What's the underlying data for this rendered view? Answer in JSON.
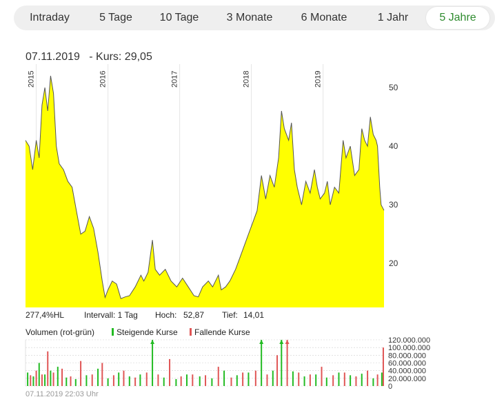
{
  "tabs": [
    {
      "label": "Intraday",
      "active": false
    },
    {
      "label": "5 Tage",
      "active": false
    },
    {
      "label": "10 Tage",
      "active": false
    },
    {
      "label": "3 Monate",
      "active": false
    },
    {
      "label": "6 Monate",
      "active": false
    },
    {
      "label": "1 Jahr",
      "active": false
    },
    {
      "label": "5 Jahre",
      "active": true
    }
  ],
  "header": {
    "date": "07.11.2019",
    "price_label": "Kurs: 29,05"
  },
  "stats": {
    "change": "277,4%HL",
    "interval": "Intervall: 1 Tag",
    "high_label": "Hoch:",
    "high_value": "52,87",
    "low_label": "Tief:",
    "low_value": "14,01"
  },
  "volume_legend": {
    "title": "Volumen (rot-grün)",
    "rising": "Steigende Kurse",
    "falling": "Fallende Kurse"
  },
  "footer": "07.11.2019 22:03 Uhr",
  "colors": {
    "fill": "#ffff00",
    "line": "#555555",
    "rising": "#22bb22",
    "falling": "#e05555",
    "active_tab": "#2e8b2e"
  },
  "chart_data": [
    {
      "type": "area",
      "x_tick_labels": [
        "2015",
        "2016",
        "2017",
        "2018",
        "2019"
      ],
      "y_ticks": [
        20,
        30,
        40,
        50
      ],
      "ylim": [
        12.5,
        54
      ],
      "xlim": [
        2014.85,
        2019.85
      ],
      "grid": "vertical",
      "points": [
        [
          2014.85,
          41
        ],
        [
          2014.9,
          40
        ],
        [
          2014.95,
          36
        ],
        [
          2015.0,
          41
        ],
        [
          2015.04,
          38
        ],
        [
          2015.08,
          47
        ],
        [
          2015.12,
          50
        ],
        [
          2015.16,
          46
        ],
        [
          2015.2,
          52
        ],
        [
          2015.24,
          49
        ],
        [
          2015.28,
          40
        ],
        [
          2015.32,
          37
        ],
        [
          2015.38,
          36
        ],
        [
          2015.44,
          34
        ],
        [
          2015.5,
          33
        ],
        [
          2015.56,
          29
        ],
        [
          2015.62,
          25
        ],
        [
          2015.68,
          25.5
        ],
        [
          2015.74,
          28
        ],
        [
          2015.8,
          26
        ],
        [
          2015.86,
          22
        ],
        [
          2015.92,
          17
        ],
        [
          2015.96,
          14.2
        ],
        [
          2016.0,
          15.5
        ],
        [
          2016.06,
          17
        ],
        [
          2016.12,
          16.5
        ],
        [
          2016.18,
          14
        ],
        [
          2016.24,
          14.3
        ],
        [
          2016.3,
          14.5
        ],
        [
          2016.38,
          16
        ],
        [
          2016.46,
          18
        ],
        [
          2016.5,
          17
        ],
        [
          2016.56,
          18.5
        ],
        [
          2016.62,
          24
        ],
        [
          2016.66,
          19
        ],
        [
          2016.72,
          18
        ],
        [
          2016.8,
          19
        ],
        [
          2016.88,
          17
        ],
        [
          2016.96,
          16
        ],
        [
          2017.04,
          17.5
        ],
        [
          2017.12,
          16
        ],
        [
          2017.2,
          14.5
        ],
        [
          2017.26,
          14.3
        ],
        [
          2017.32,
          16
        ],
        [
          2017.4,
          17
        ],
        [
          2017.46,
          16
        ],
        [
          2017.54,
          18
        ],
        [
          2017.58,
          15.5
        ],
        [
          2017.64,
          16
        ],
        [
          2017.7,
          17
        ],
        [
          2017.78,
          19
        ],
        [
          2017.84,
          21
        ],
        [
          2017.9,
          23
        ],
        [
          2017.96,
          25
        ],
        [
          2018.02,
          27
        ],
        [
          2018.08,
          29
        ],
        [
          2018.14,
          35
        ],
        [
          2018.2,
          31
        ],
        [
          2018.26,
          35
        ],
        [
          2018.32,
          33
        ],
        [
          2018.38,
          38
        ],
        [
          2018.42,
          46
        ],
        [
          2018.46,
          43
        ],
        [
          2018.52,
          41
        ],
        [
          2018.56,
          44
        ],
        [
          2018.6,
          36
        ],
        [
          2018.64,
          33
        ],
        [
          2018.7,
          30
        ],
        [
          2018.76,
          34
        ],
        [
          2018.82,
          32
        ],
        [
          2018.88,
          36
        ],
        [
          2018.92,
          33
        ],
        [
          2018.96,
          31
        ],
        [
          2019.02,
          32
        ],
        [
          2019.06,
          34
        ],
        [
          2019.1,
          30
        ],
        [
          2019.16,
          33
        ],
        [
          2019.22,
          32
        ],
        [
          2019.28,
          41
        ],
        [
          2019.32,
          38
        ],
        [
          2019.38,
          40
        ],
        [
          2019.44,
          35
        ],
        [
          2019.5,
          36
        ],
        [
          2019.54,
          43
        ],
        [
          2019.58,
          41
        ],
        [
          2019.62,
          40
        ],
        [
          2019.66,
          45
        ],
        [
          2019.7,
          42
        ],
        [
          2019.74,
          41
        ],
        [
          2019.76,
          40
        ],
        [
          2019.79,
          33
        ],
        [
          2019.81,
          30
        ],
        [
          2019.85,
          29.05
        ]
      ]
    },
    {
      "type": "bar",
      "title": "Volumen (rot-grün)",
      "y_ticks": [
        0,
        20000000,
        40000000,
        60000000,
        80000000,
        100000000,
        120000000
      ],
      "y_tick_labels": [
        "0",
        "20.000.000",
        "40.000.000",
        "60.000.000",
        "80.000.000",
        "100.000.000",
        "120.000.000"
      ],
      "ylim": [
        0,
        120000000
      ],
      "xlim": [
        2014.85,
        2019.85
      ],
      "series": [
        {
          "name": "Steigende Kurse",
          "color": "#22bb22",
          "x": [
            2014.88,
            2014.96,
            2015.04,
            2015.12,
            2015.2,
            2015.3,
            2015.42,
            2015.55,
            2015.7,
            2015.86,
            2016.0,
            2016.15,
            2016.3,
            2016.45,
            2016.62,
            2016.78,
            2016.95,
            2017.1,
            2017.28,
            2017.45,
            2017.62,
            2017.8,
            2017.96,
            2018.14,
            2018.3,
            2018.42,
            2018.58,
            2018.74,
            2018.9,
            2019.05,
            2019.22,
            2019.38,
            2019.54,
            2019.7,
            2019.82
          ],
          "values": [
            35000000,
            25000000,
            60000000,
            30000000,
            40000000,
            50000000,
            22000000,
            18000000,
            28000000,
            45000000,
            20000000,
            35000000,
            25000000,
            30000000,
            120000000,
            22000000,
            18000000,
            30000000,
            25000000,
            20000000,
            40000000,
            28000000,
            35000000,
            120000000,
            40000000,
            120000000,
            38000000,
            25000000,
            30000000,
            22000000,
            35000000,
            28000000,
            32000000,
            20000000,
            35000000
          ]
        },
        {
          "name": "Fallende Kurse",
          "color": "#e05555",
          "x": [
            2014.92,
            2015.0,
            2015.08,
            2015.16,
            2015.24,
            2015.36,
            2015.48,
            2015.62,
            2015.78,
            2015.92,
            2016.08,
            2016.22,
            2016.38,
            2016.54,
            2016.7,
            2016.86,
            2017.02,
            2017.18,
            2017.36,
            2017.54,
            2017.72,
            2017.88,
            2018.06,
            2018.22,
            2018.36,
            2018.5,
            2018.66,
            2018.82,
            2018.98,
            2019.14,
            2019.3,
            2019.46,
            2019.62,
            2019.76,
            2019.84
          ],
          "values": [
            28000000,
            40000000,
            30000000,
            90000000,
            35000000,
            45000000,
            25000000,
            65000000,
            30000000,
            60000000,
            28000000,
            40000000,
            22000000,
            35000000,
            30000000,
            70000000,
            25000000,
            30000000,
            28000000,
            50000000,
            22000000,
            35000000,
            40000000,
            30000000,
            80000000,
            120000000,
            35000000,
            30000000,
            50000000,
            28000000,
            35000000,
            25000000,
            40000000,
            30000000,
            100000000
          ]
        }
      ]
    }
  ]
}
